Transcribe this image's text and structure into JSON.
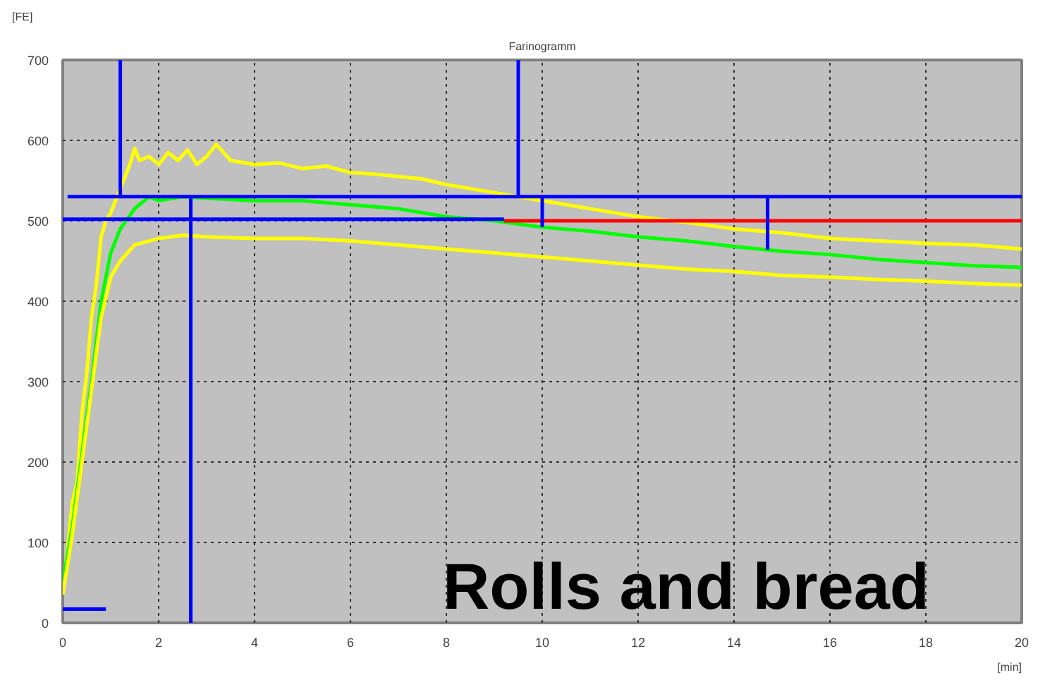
{
  "chart_data": {
    "type": "line",
    "title": "Farinogramm",
    "xlabel": "[min]",
    "ylabel": "[FE]",
    "annotations": [
      "Rolls and bread"
    ],
    "xlim": [
      0,
      20
    ],
    "ylim": [
      0,
      700
    ],
    "xticks": [
      0,
      2,
      4,
      6,
      8,
      10,
      12,
      14,
      16,
      18,
      20
    ],
    "yticks": [
      0,
      100,
      200,
      300,
      400,
      500,
      600,
      700
    ],
    "grid": true,
    "line_style": "solid",
    "series": [
      {
        "color": "#ffff00",
        "x": [
          0,
          0.1,
          0.2,
          0.3,
          0.4,
          0.5,
          0.6,
          0.7,
          0.8,
          0.9,
          1.0,
          1.1,
          1.2,
          1.3,
          1.4,
          1.5,
          1.6,
          1.8,
          2.0,
          2.2,
          2.4,
          2.6,
          2.8,
          3.0,
          3.2,
          3.5,
          4.0,
          4.5,
          5.0,
          5.5,
          6.0,
          6.5,
          7.0,
          7.5,
          8.0,
          8.5,
          9.0,
          9.5,
          10,
          11,
          12,
          13,
          14,
          15,
          16,
          17,
          18,
          19,
          20
        ],
        "values": [
          40,
          90,
          150,
          175,
          260,
          310,
          380,
          420,
          480,
          500,
          510,
          525,
          540,
          555,
          570,
          590,
          575,
          580,
          570,
          585,
          575,
          588,
          570,
          580,
          595,
          575,
          570,
          572,
          565,
          568,
          560,
          558,
          555,
          552,
          545,
          540,
          535,
          530,
          525,
          515,
          505,
          498,
          490,
          485,
          478,
          475,
          472,
          470,
          465
        ]
      },
      {
        "color": "#00ff00",
        "x": [
          0,
          0.2,
          0.4,
          0.6,
          0.8,
          1.0,
          1.2,
          1.5,
          1.8,
          2.0,
          2.5,
          3.0,
          4.0,
          5.0,
          6.0,
          7.0,
          8.0,
          9.0,
          10,
          11,
          12,
          13,
          14,
          15,
          16,
          17,
          18,
          19,
          20
        ],
        "values": [
          50,
          120,
          210,
          300,
          400,
          460,
          490,
          515,
          530,
          525,
          530,
          528,
          525,
          525,
          520,
          515,
          505,
          500,
          492,
          487,
          480,
          475,
          468,
          462,
          458,
          452,
          448,
          444,
          442
        ]
      },
      {
        "color": "#ffff00",
        "x": [
          0,
          0.2,
          0.4,
          0.6,
          0.8,
          1.0,
          1.2,
          1.5,
          2.0,
          2.5,
          3.0,
          4.0,
          5.0,
          6.0,
          7.0,
          8.0,
          9.0,
          10,
          11,
          12,
          13,
          14,
          15,
          16,
          17,
          18,
          19,
          20
        ],
        "values": [
          35,
          110,
          200,
          290,
          380,
          430,
          450,
          470,
          478,
          482,
          480,
          478,
          478,
          475,
          470,
          465,
          460,
          455,
          450,
          445,
          440,
          437,
          432,
          430,
          427,
          425,
          422,
          420
        ]
      },
      {
        "color": "#ff0000",
        "x": [
          9.2,
          20
        ],
        "values": [
          500,
          500
        ]
      },
      {
        "color": "#0000ff",
        "x": [
          0,
          9.2
        ],
        "values": [
          502,
          502
        ]
      },
      {
        "color": "#0000ff",
        "x": [
          0.1,
          20
        ],
        "values": [
          530,
          530
        ]
      },
      {
        "color": "#0000ff",
        "x": [
          1.2,
          1.2
        ],
        "values": [
          700,
          530
        ]
      },
      {
        "color": "#0000ff",
        "x": [
          2.67,
          2.67
        ],
        "values": [
          530,
          0
        ]
      },
      {
        "color": "#0000ff",
        "x": [
          9.5,
          9.5
        ],
        "values": [
          700,
          530
        ]
      },
      {
        "color": "#0000ff",
        "x": [
          10,
          10
        ],
        "values": [
          530,
          492
        ]
      },
      {
        "color": "#0000ff",
        "x": [
          14.7,
          14.7
        ],
        "values": [
          530,
          464
        ]
      },
      {
        "color": "#0000ff",
        "x": [
          0,
          0.9
        ],
        "values": [
          17,
          17
        ]
      }
    ]
  }
}
